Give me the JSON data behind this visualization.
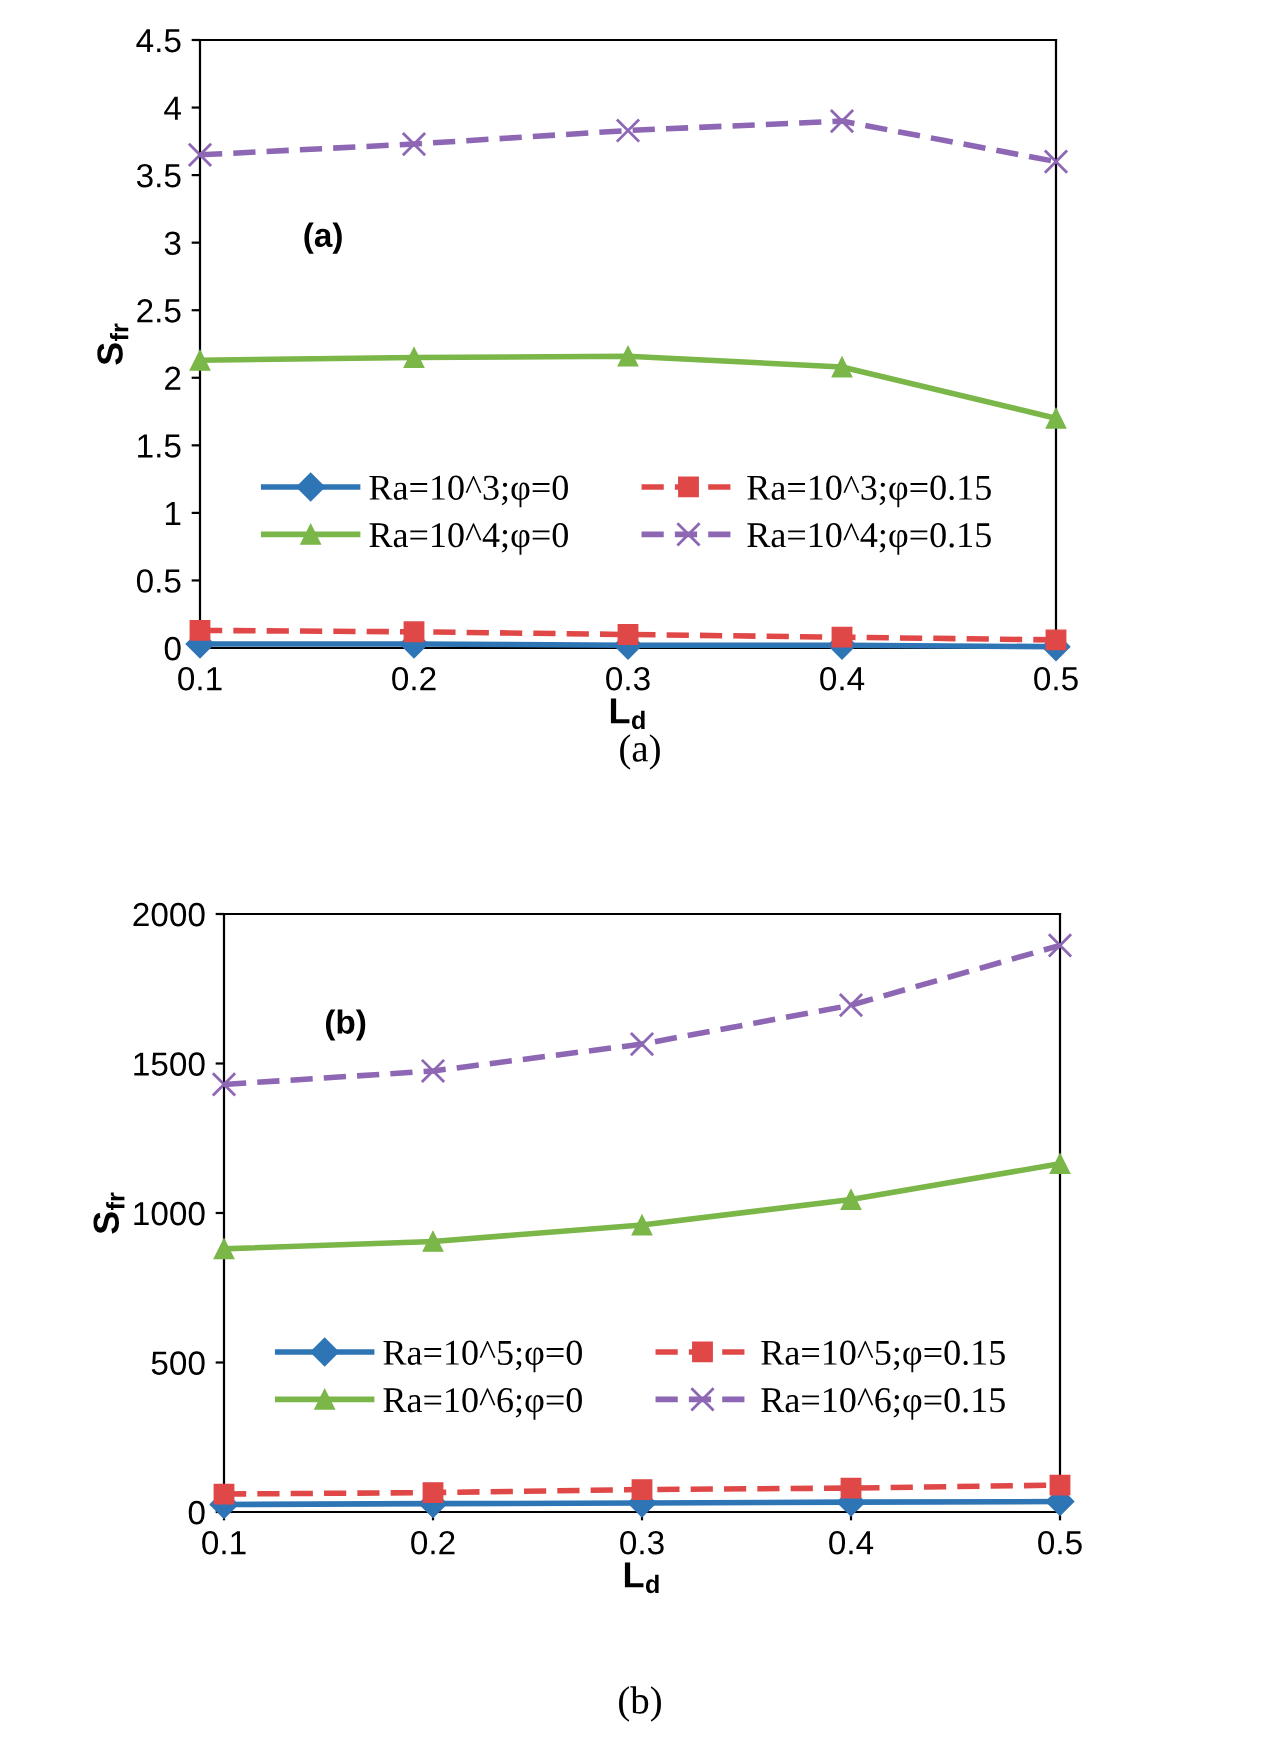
{
  "chart_data": [
    {
      "type": "line",
      "xlabel": "L$_{d}$",
      "ylabel": "S$_{fr}$",
      "x": [
        0.1,
        0.2,
        0.3,
        0.4,
        0.5
      ],
      "xlim": [
        0.1,
        0.5
      ],
      "xticks": [
        0.1,
        0.2,
        0.3,
        0.4,
        0.5
      ],
      "ylim": [
        0,
        4.5
      ],
      "yticks": [
        0,
        0.5,
        1,
        1.5,
        2,
        2.5,
        3,
        3.5,
        4,
        4.5
      ],
      "grid": false,
      "legend": "bottom",
      "annotations": [
        "(a)",
        "(a)"
      ],
      "series": [
        {
          "name": "Ra=10^3;φ=0",
          "color": "#2e75b6",
          "marker": "diamond",
          "line_style": "solid",
          "values": [
            0.03,
            0.03,
            0.02,
            0.02,
            0.01
          ]
        },
        {
          "name": "Ra=10^3;φ=0.15",
          "color": "#e04848",
          "marker": "square",
          "line_style": "dashed",
          "values": [
            0.13,
            0.12,
            0.1,
            0.08,
            0.06
          ]
        },
        {
          "name": "Ra=10^4;φ=0",
          "color": "#7ab648",
          "marker": "triangle",
          "line_style": "solid",
          "values": [
            2.13,
            2.15,
            2.16,
            2.08,
            1.7
          ]
        },
        {
          "name": "Ra=10^4;φ=0.15",
          "color": "#8e67b4",
          "marker": "cross",
          "line_style": "dashed",
          "values": [
            3.65,
            3.73,
            3.83,
            3.9,
            3.6
          ]
        }
      ]
    },
    {
      "type": "line",
      "xlabel": "L$_{d}$",
      "ylabel": "S$_{fr}$",
      "x": [
        0.1,
        0.2,
        0.3,
        0.4,
        0.5
      ],
      "xlim": [
        0.1,
        0.5
      ],
      "xticks": [
        0.1,
        0.2,
        0.3,
        0.4,
        0.5
      ],
      "ylim": [
        0,
        2000
      ],
      "yticks": [
        0,
        500,
        1000,
        1500,
        2000
      ],
      "grid": false,
      "legend": "bottom",
      "annotations": [
        "(b)",
        "(b)"
      ],
      "series": [
        {
          "name": "Ra=10^5;φ=0",
          "color": "#2e75b6",
          "marker": "diamond",
          "line_style": "solid",
          "values": [
            25,
            28,
            30,
            33,
            35
          ]
        },
        {
          "name": "Ra=10^5;φ=0.15",
          "color": "#e04848",
          "marker": "square",
          "line_style": "dashed",
          "values": [
            60,
            65,
            75,
            80,
            90
          ]
        },
        {
          "name": "Ra=10^6;φ=0",
          "color": "#7ab648",
          "marker": "triangle",
          "line_style": "solid",
          "values": [
            880,
            905,
            960,
            1045,
            1165
          ]
        },
        {
          "name": "Ra=10^6;φ=0.15",
          "color": "#8e67b4",
          "marker": "cross",
          "line_style": "dashed",
          "values": [
            1430,
            1475,
            1565,
            1695,
            1895
          ]
        }
      ]
    }
  ]
}
